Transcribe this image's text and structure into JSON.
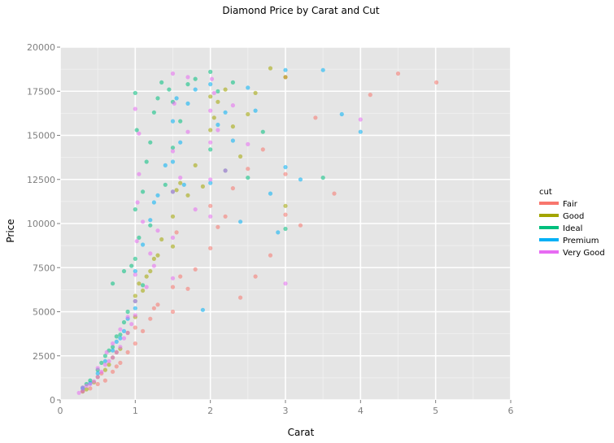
{
  "chart_data": {
    "type": "scatter",
    "title": "Diamond Price by Carat and Cut",
    "xlabel": "Carat",
    "ylabel": "Price",
    "xlim": [
      0,
      6
    ],
    "ylim": [
      0,
      20000
    ],
    "x_ticks": [
      "0",
      "1",
      "2",
      "3",
      "4",
      "5",
      "6"
    ],
    "y_ticks": [
      "0",
      "2500",
      "5000",
      "7500",
      "10000",
      "12500",
      "15000",
      "17500",
      "20000"
    ],
    "grid": true,
    "legend_placement": "right",
    "legend_title": "cut",
    "colors": {
      "panel_background": "#e5e5e5",
      "grid_major": "#ffffff",
      "grid_minor": "#f2f2f2"
    },
    "series": [
      {
        "name": "Fair",
        "color": "#f8766d",
        "points": [
          [
            0.3,
            500
          ],
          [
            0.4,
            650
          ],
          [
            0.5,
            900
          ],
          [
            0.6,
            1100
          ],
          [
            0.7,
            1600
          ],
          [
            0.75,
            1900
          ],
          [
            0.9,
            2700
          ],
          [
            1.0,
            3200
          ],
          [
            1.0,
            4100
          ],
          [
            1.1,
            3900
          ],
          [
            1.2,
            4600
          ],
          [
            1.3,
            5400
          ],
          [
            1.5,
            5000
          ],
          [
            1.5,
            6400
          ],
          [
            1.6,
            7000
          ],
          [
            1.7,
            6300
          ],
          [
            1.8,
            7400
          ],
          [
            2.0,
            8600
          ],
          [
            2.0,
            11000
          ],
          [
            2.1,
            9800
          ],
          [
            2.2,
            10400
          ],
          [
            2.3,
            12000
          ],
          [
            2.5,
            13100
          ],
          [
            2.7,
            14200
          ],
          [
            3.0,
            10500
          ],
          [
            3.0,
            12800
          ],
          [
            3.0,
            18300
          ],
          [
            3.2,
            9900
          ],
          [
            3.4,
            16000
          ],
          [
            3.65,
            11700
          ],
          [
            4.13,
            17300
          ],
          [
            4.5,
            18500
          ],
          [
            5.01,
            18000
          ],
          [
            0.8,
            2100
          ],
          [
            1.25,
            5200
          ],
          [
            2.6,
            7000
          ],
          [
            2.8,
            8200
          ],
          [
            0.55,
            1500
          ],
          [
            1.55,
            9500
          ],
          [
            2.4,
            5800
          ]
        ]
      },
      {
        "name": "Good",
        "color": "#a3a500",
        "points": [
          [
            0.3,
            480
          ],
          [
            0.35,
            600
          ],
          [
            0.5,
            1300
          ],
          [
            0.6,
            1700
          ],
          [
            0.7,
            2400
          ],
          [
            0.8,
            2900
          ],
          [
            0.9,
            3800
          ],
          [
            1.0,
            4700
          ],
          [
            1.0,
            5900
          ],
          [
            1.05,
            6600
          ],
          [
            1.1,
            6200
          ],
          [
            1.2,
            7300
          ],
          [
            1.3,
            8200
          ],
          [
            1.5,
            8700
          ],
          [
            1.5,
            10400
          ],
          [
            1.55,
            11900
          ],
          [
            1.6,
            12300
          ],
          [
            1.7,
            11600
          ],
          [
            1.8,
            13300
          ],
          [
            2.0,
            15300
          ],
          [
            2.0,
            17200
          ],
          [
            2.05,
            16000
          ],
          [
            2.1,
            16900
          ],
          [
            2.2,
            17600
          ],
          [
            2.3,
            15500
          ],
          [
            2.5,
            16200
          ],
          [
            2.6,
            17400
          ],
          [
            2.8,
            18800
          ],
          [
            3.0,
            18300
          ],
          [
            3.0,
            11000
          ],
          [
            0.45,
            1000
          ],
          [
            0.75,
            2700
          ],
          [
            1.15,
            7000
          ],
          [
            1.35,
            9100
          ],
          [
            2.4,
            13800
          ],
          [
            1.9,
            12100
          ],
          [
            0.65,
            2000
          ],
          [
            1.25,
            8000
          ]
        ]
      },
      {
        "name": "Ideal",
        "color": "#00bf7d",
        "points": [
          [
            0.3,
            700
          ],
          [
            0.35,
            900
          ],
          [
            0.4,
            1100
          ],
          [
            0.5,
            1700
          ],
          [
            0.55,
            2100
          ],
          [
            0.6,
            2500
          ],
          [
            0.7,
            3000
          ],
          [
            0.75,
            3600
          ],
          [
            0.8,
            3700
          ],
          [
            0.9,
            5000
          ],
          [
            1.0,
            5600
          ],
          [
            1.0,
            8000
          ],
          [
            1.0,
            10800
          ],
          [
            1.05,
            9200
          ],
          [
            1.1,
            11800
          ],
          [
            1.15,
            13500
          ],
          [
            1.2,
            14600
          ],
          [
            1.25,
            16300
          ],
          [
            1.3,
            17100
          ],
          [
            1.0,
            17400
          ],
          [
            1.35,
            18000
          ],
          [
            1.5,
            11800
          ],
          [
            1.5,
            14300
          ],
          [
            1.5,
            16900
          ],
          [
            1.6,
            15800
          ],
          [
            1.7,
            17900
          ],
          [
            1.8,
            18200
          ],
          [
            2.0,
            18600
          ],
          [
            2.0,
            14200
          ],
          [
            2.1,
            17500
          ],
          [
            2.2,
            13000
          ],
          [
            2.3,
            18000
          ],
          [
            2.5,
            12600
          ],
          [
            2.7,
            15200
          ],
          [
            3.0,
            9700
          ],
          [
            3.5,
            12600
          ],
          [
            0.65,
            2800
          ],
          [
            0.85,
            4400
          ],
          [
            1.4,
            12200
          ],
          [
            1.1,
            6500
          ],
          [
            0.95,
            7600
          ],
          [
            1.02,
            15300
          ],
          [
            1.2,
            9900
          ],
          [
            1.45,
            17600
          ],
          [
            0.7,
            6600
          ],
          [
            0.85,
            7300
          ]
        ]
      },
      {
        "name": "Premium",
        "color": "#00b0f6",
        "points": [
          [
            0.3,
            650
          ],
          [
            0.4,
            950
          ],
          [
            0.5,
            1500
          ],
          [
            0.6,
            2200
          ],
          [
            0.7,
            2800
          ],
          [
            0.75,
            3300
          ],
          [
            0.8,
            3500
          ],
          [
            0.9,
            4600
          ],
          [
            1.0,
            5200
          ],
          [
            1.0,
            7300
          ],
          [
            1.1,
            8800
          ],
          [
            1.2,
            10200
          ],
          [
            1.3,
            11600
          ],
          [
            1.4,
            13300
          ],
          [
            1.5,
            13500
          ],
          [
            1.5,
            15800
          ],
          [
            1.55,
            17100
          ],
          [
            1.6,
            14600
          ],
          [
            1.7,
            16800
          ],
          [
            1.8,
            17600
          ],
          [
            2.0,
            17900
          ],
          [
            2.0,
            12300
          ],
          [
            2.1,
            15600
          ],
          [
            2.2,
            16300
          ],
          [
            2.3,
            14700
          ],
          [
            2.5,
            17700
          ],
          [
            2.6,
            16400
          ],
          [
            2.8,
            11700
          ],
          [
            3.0,
            13200
          ],
          [
            3.0,
            18700
          ],
          [
            3.2,
            12500
          ],
          [
            3.5,
            18700
          ],
          [
            3.75,
            16200
          ],
          [
            4.0,
            15200
          ],
          [
            1.9,
            5100
          ],
          [
            2.9,
            9500
          ],
          [
            1.65,
            12200
          ],
          [
            2.4,
            10100
          ],
          [
            1.25,
            11200
          ],
          [
            0.85,
            3900
          ]
        ]
      },
      {
        "name": "Very Good",
        "color": "#e76bf3",
        "points": [
          [
            0.25,
            400
          ],
          [
            0.3,
            500
          ],
          [
            0.3,
            700
          ],
          [
            0.35,
            800
          ],
          [
            0.4,
            900
          ],
          [
            0.45,
            1050
          ],
          [
            0.5,
            1300
          ],
          [
            0.5,
            1800
          ],
          [
            0.55,
            1600
          ],
          [
            0.6,
            2000
          ],
          [
            0.65,
            2200
          ],
          [
            0.7,
            2400
          ],
          [
            0.7,
            3200
          ],
          [
            0.75,
            2700
          ],
          [
            0.8,
            3000
          ],
          [
            0.8,
            4000
          ],
          [
            0.85,
            3500
          ],
          [
            0.9,
            3800
          ],
          [
            0.9,
            4700
          ],
          [
            0.95,
            4300
          ],
          [
            1.0,
            4800
          ],
          [
            1.0,
            5600
          ],
          [
            1.0,
            7100
          ],
          [
            1.02,
            9000
          ],
          [
            1.03,
            11200
          ],
          [
            1.05,
            12800
          ],
          [
            1.0,
            16500
          ],
          [
            1.05,
            15100
          ],
          [
            1.1,
            10100
          ],
          [
            1.2,
            8300
          ],
          [
            1.3,
            9600
          ],
          [
            1.5,
            6900
          ],
          [
            1.5,
            9200
          ],
          [
            1.5,
            11800
          ],
          [
            1.5,
            14100
          ],
          [
            1.52,
            16800
          ],
          [
            1.5,
            18500
          ],
          [
            1.6,
            12600
          ],
          [
            1.7,
            15200
          ],
          [
            1.7,
            18300
          ],
          [
            2.0,
            10400
          ],
          [
            2.0,
            12500
          ],
          [
            2.0,
            14600
          ],
          [
            2.0,
            16400
          ],
          [
            2.02,
            18200
          ],
          [
            2.05,
            17400
          ],
          [
            2.1,
            15300
          ],
          [
            2.2,
            13000
          ],
          [
            2.3,
            16700
          ],
          [
            3.0,
            6600
          ],
          [
            4.0,
            15900
          ],
          [
            0.62,
            2700
          ],
          [
            1.15,
            6400
          ],
          [
            1.25,
            7600
          ],
          [
            1.8,
            10800
          ],
          [
            2.5,
            14500
          ]
        ]
      }
    ]
  }
}
